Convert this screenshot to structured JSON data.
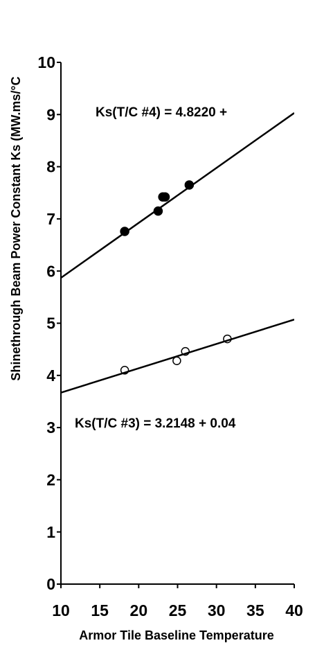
{
  "chart_data": {
    "type": "scatter",
    "y_label": "Shinethrough Beam Power Constant Ks (MW.ms/°C",
    "x_label": "Armor Tile Baseline Temperature",
    "annotations": [
      "Ks(T/C #4) = 4.8220 +",
      "Ks(T/C #3) = 3.2148 + 0.04"
    ],
    "xlim": [
      10,
      40
    ],
    "xticks": [
      10,
      15,
      20,
      25,
      30,
      35,
      40
    ],
    "ylim": [
      0,
      10
    ],
    "yticks": [
      0,
      1,
      2,
      3,
      4,
      5,
      6,
      7,
      8,
      9,
      10
    ],
    "series": [
      {
        "style": "filled",
        "color": "#000000",
        "x": [
          18.2,
          22.5,
          23.1,
          23.4,
          26.5
        ],
        "values": [
          6.76,
          7.15,
          7.42,
          7.42,
          7.65
        ]
      },
      {
        "style": "open",
        "color": "#000000",
        "x": [
          18.2,
          24.9,
          26.0,
          31.4
        ],
        "values": [
          4.1,
          4.28,
          4.46,
          4.7
        ]
      },
      {
        "style": "line",
        "color": "#000000",
        "x": [
          10,
          40
        ],
        "values": [
          5.87,
          9.03
        ]
      },
      {
        "style": "line",
        "color": "#000000",
        "x": [
          10,
          40
        ],
        "values": [
          3.67,
          5.07
        ]
      }
    ]
  }
}
